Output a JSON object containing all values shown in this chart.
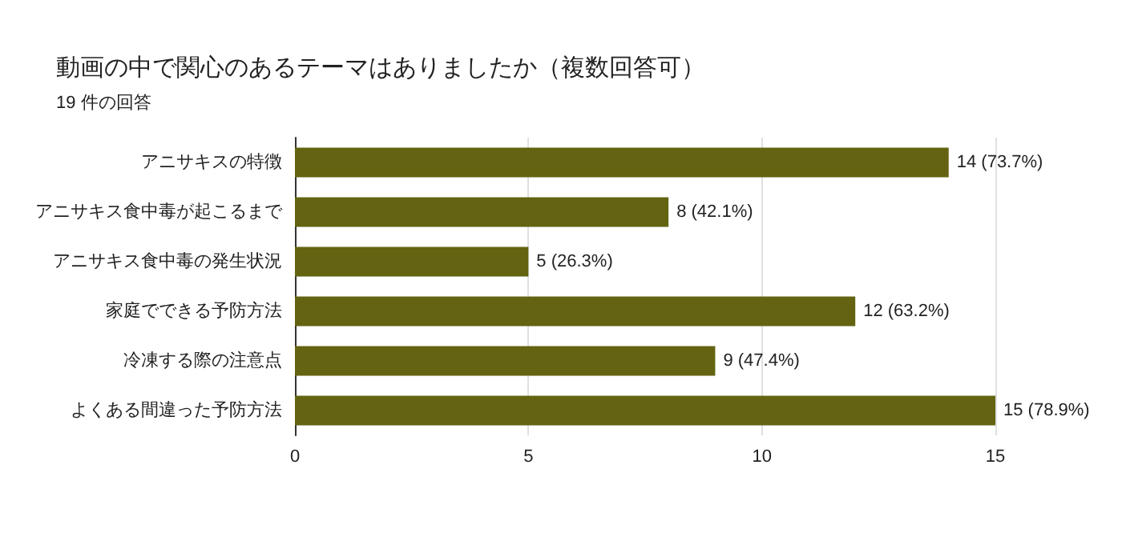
{
  "chart_data": {
    "type": "bar",
    "orientation": "horizontal",
    "title": "動画の中で関心のあるテーマはありましたか（複数回答可）",
    "subtitle": "19 件の回答",
    "categories": [
      "アニサキスの特徴",
      "アニサキス食中毒が起こるまで",
      "アニサキス食中毒の発生状況",
      "家庭でできる予防方法",
      "冷凍する際の注意点",
      "よくある間違った予防方法"
    ],
    "values": [
      14,
      8,
      5,
      12,
      9,
      15
    ],
    "value_labels": [
      "14 (73.7%)",
      "8 (42.1%)",
      "5 (26.3%)",
      "12 (63.2%)",
      "9 (47.4%)",
      "15 (78.9%)"
    ],
    "color": "#636311",
    "xlim": [
      0,
      15
    ],
    "xticks": [
      0,
      5,
      10,
      15
    ],
    "grid": "x"
  }
}
